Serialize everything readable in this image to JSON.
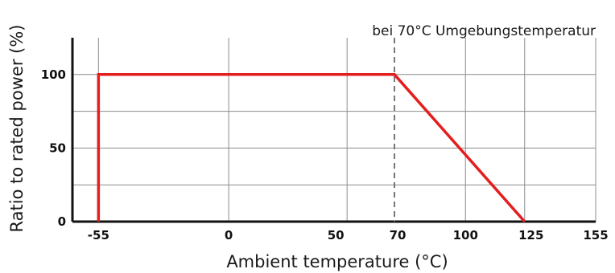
{
  "chart_data": {
    "type": "line",
    "annotation": "bei 70°C Umgebungstemperatur",
    "xlabel": "Ambient temperature (°C)",
    "ylabel": "Ratio to rated power (%)",
    "x_ticks": [
      -55,
      0,
      50,
      70,
      100,
      125,
      155
    ],
    "x_tick_labels": [
      "-55",
      "0",
      "50",
      "70",
      "100",
      "125",
      "155"
    ],
    "y_ticks": [
      0,
      50,
      100
    ],
    "y_tick_labels": [
      "0",
      "50",
      "100"
    ],
    "xlim": [
      -66,
      155
    ],
    "ylim": [
      0,
      125
    ],
    "grid": true,
    "reference_line_x": 70,
    "series": [
      {
        "color": "#e41e1e",
        "x": [
          -55,
          -55,
          70,
          125
        ],
        "y": [
          0,
          100,
          100,
          0
        ]
      }
    ]
  }
}
